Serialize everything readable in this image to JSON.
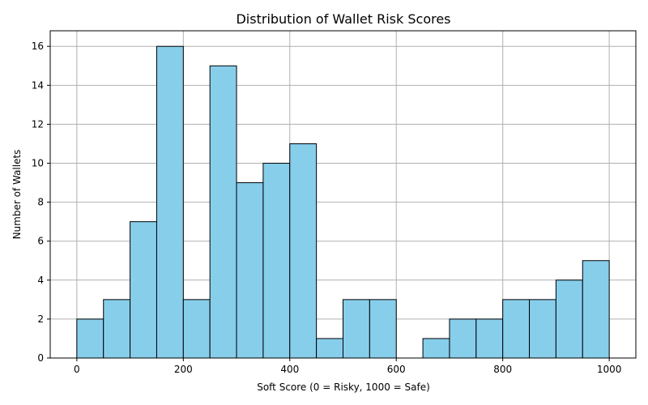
{
  "chart_data": {
    "type": "bar",
    "title": "Distribution of Wallet Risk Scores",
    "xlabel": "Soft Score (0 = Risky, 1000 = Safe)",
    "ylabel": "Number of Wallets",
    "bin_edges": [
      0,
      50,
      100,
      150,
      200,
      250,
      300,
      350,
      400,
      450,
      500,
      550,
      600,
      650,
      700,
      750,
      800,
      850,
      900,
      950,
      1000
    ],
    "values": [
      2,
      3,
      7,
      16,
      3,
      15,
      9,
      10,
      11,
      1,
      3,
      3,
      0,
      1,
      2,
      2,
      3,
      3,
      4,
      5
    ],
    "xlim": [
      -50,
      1050
    ],
    "ylim": [
      0,
      16.8
    ],
    "x_ticks": [
      0,
      200,
      400,
      600,
      800,
      1000
    ],
    "y_ticks": [
      0,
      2,
      4,
      6,
      8,
      10,
      12,
      14,
      16
    ],
    "grid": true,
    "legend": "none",
    "colors": {
      "bar_fill": "#87ceeb",
      "bar_edge": "#000000",
      "grid": "#b0b0b0",
      "axis": "#000000"
    }
  }
}
